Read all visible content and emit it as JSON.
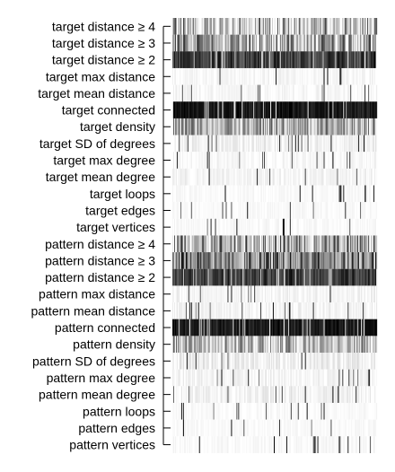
{
  "chart_data": {
    "type": "heatmap",
    "title": "",
    "xlabel": "",
    "ylabel": "",
    "row_labels": [
      "target distance ≥ 4",
      "target distance ≥ 3",
      "target distance ≥ 2",
      "target max distance",
      "target mean distance",
      "target connected",
      "target density",
      "target SD of degrees",
      "target max degree",
      "target mean degree",
      "target loops",
      "target edges",
      "target vertices",
      "pattern distance ≥ 4",
      "pattern distance ≥ 3",
      "pattern distance ≥ 2",
      "pattern max distance",
      "pattern mean distance",
      "pattern connected",
      "pattern density",
      "pattern SD of degrees",
      "pattern max degree",
      "pattern mean degree",
      "pattern loops",
      "pattern edges",
      "pattern vertices"
    ],
    "n_columns": 230,
    "value_range": [
      0,
      1
    ],
    "color_low": "#ffffff",
    "color_high": "#000000",
    "row_mean_intensity": [
      0.22,
      0.38,
      0.78,
      0.03,
      0.03,
      0.95,
      0.35,
      0.05,
      0.03,
      0.04,
      0.02,
      0.02,
      0.02,
      0.35,
      0.55,
      0.8,
      0.04,
      0.04,
      0.92,
      0.3,
      0.06,
      0.04,
      0.05,
      0.02,
      0.02,
      0.02
    ],
    "row_variability": [
      0.55,
      0.45,
      0.2,
      0.05,
      0.05,
      0.1,
      0.35,
      0.08,
      0.05,
      0.06,
      0.03,
      0.03,
      0.04,
      0.5,
      0.45,
      0.18,
      0.06,
      0.06,
      0.12,
      0.35,
      0.1,
      0.06,
      0.08,
      0.03,
      0.03,
      0.04
    ]
  }
}
